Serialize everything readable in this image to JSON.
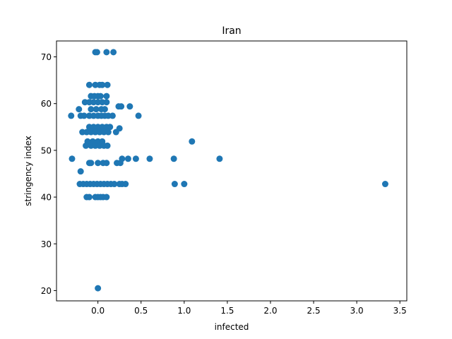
{
  "chart_data": {
    "type": "scatter",
    "title": "Iran",
    "xlabel": "infected",
    "ylabel": "stringency index",
    "xlim": [
      -0.48,
      3.58
    ],
    "ylim": [
      17.8,
      73.4
    ],
    "xticks": [
      0.0,
      0.5,
      1.0,
      1.5,
      2.0,
      2.5,
      3.0,
      3.5
    ],
    "xtick_labels": [
      "0.0",
      "0.5",
      "1.0",
      "1.5",
      "2.0",
      "2.5",
      "3.0",
      "3.5"
    ],
    "yticks": [
      20,
      30,
      40,
      50,
      60,
      70
    ],
    "ytick_labels": [
      "20",
      "30",
      "40",
      "50",
      "60",
      "70"
    ],
    "grid": false,
    "legend": "none",
    "color": "#1f77b4",
    "points": [
      [
        -0.03,
        71.0
      ],
      [
        -0.01,
        71.0
      ],
      [
        0.1,
        71.0
      ],
      [
        0.18,
        71.0
      ],
      [
        -0.1,
        64.0
      ],
      [
        -0.03,
        64.0
      ],
      [
        0.02,
        64.0
      ],
      [
        0.05,
        64.0
      ],
      [
        0.11,
        64.0
      ],
      [
        -0.08,
        61.6
      ],
      [
        -0.04,
        61.6
      ],
      [
        0.0,
        61.6
      ],
      [
        0.03,
        61.6
      ],
      [
        0.1,
        61.6
      ],
      [
        -0.15,
        60.3
      ],
      [
        -0.1,
        60.3
      ],
      [
        -0.05,
        60.3
      ],
      [
        0.0,
        60.3
      ],
      [
        0.05,
        60.3
      ],
      [
        0.1,
        60.3
      ],
      [
        0.24,
        59.4
      ],
      [
        0.27,
        59.4
      ],
      [
        0.37,
        59.4
      ],
      [
        -0.22,
        58.8
      ],
      [
        -0.08,
        58.8
      ],
      [
        -0.02,
        58.8
      ],
      [
        0.04,
        58.8
      ],
      [
        0.08,
        58.8
      ],
      [
        -0.31,
        57.4
      ],
      [
        -0.2,
        57.4
      ],
      [
        -0.16,
        57.4
      ],
      [
        -0.1,
        57.4
      ],
      [
        -0.05,
        57.4
      ],
      [
        0.0,
        57.4
      ],
      [
        0.04,
        57.4
      ],
      [
        0.08,
        57.4
      ],
      [
        0.12,
        57.4
      ],
      [
        0.17,
        57.4
      ],
      [
        0.47,
        57.4
      ],
      [
        -0.1,
        55.0
      ],
      [
        -0.05,
        55.0
      ],
      [
        0.0,
        55.0
      ],
      [
        0.05,
        55.0
      ],
      [
        0.1,
        55.0
      ],
      [
        0.14,
        55.0
      ],
      [
        0.25,
        54.7
      ],
      [
        -0.18,
        53.9
      ],
      [
        -0.13,
        53.9
      ],
      [
        -0.08,
        53.9
      ],
      [
        -0.03,
        53.9
      ],
      [
        0.02,
        53.9
      ],
      [
        0.07,
        53.9
      ],
      [
        0.12,
        53.9
      ],
      [
        0.21,
        53.9
      ],
      [
        -0.12,
        51.9
      ],
      [
        -0.06,
        51.9
      ],
      [
        0.0,
        51.9
      ],
      [
        0.05,
        51.9
      ],
      [
        1.09,
        51.9
      ],
      [
        -0.14,
        51.0
      ],
      [
        -0.08,
        51.0
      ],
      [
        -0.03,
        51.0
      ],
      [
        0.02,
        51.0
      ],
      [
        0.07,
        51.0
      ],
      [
        0.11,
        51.0
      ],
      [
        -0.3,
        48.2
      ],
      [
        0.28,
        48.2
      ],
      [
        0.35,
        48.2
      ],
      [
        0.44,
        48.2
      ],
      [
        0.6,
        48.2
      ],
      [
        0.88,
        48.2
      ],
      [
        1.41,
        48.2
      ],
      [
        -0.1,
        47.3
      ],
      [
        -0.08,
        47.3
      ],
      [
        0.0,
        47.3
      ],
      [
        0.06,
        47.3
      ],
      [
        0.1,
        47.3
      ],
      [
        0.22,
        47.3
      ],
      [
        0.26,
        47.3
      ],
      [
        -0.2,
        45.5
      ],
      [
        -0.21,
        42.8
      ],
      [
        -0.17,
        42.8
      ],
      [
        -0.13,
        42.8
      ],
      [
        -0.09,
        42.8
      ],
      [
        -0.05,
        42.8
      ],
      [
        -0.01,
        42.8
      ],
      [
        0.03,
        42.8
      ],
      [
        0.07,
        42.8
      ],
      [
        0.11,
        42.8
      ],
      [
        0.15,
        42.8
      ],
      [
        0.19,
        42.8
      ],
      [
        0.25,
        42.8
      ],
      [
        0.28,
        42.8
      ],
      [
        0.32,
        42.8
      ],
      [
        0.89,
        42.8
      ],
      [
        1.0,
        42.8
      ],
      [
        3.33,
        42.8
      ],
      [
        -0.13,
        40.0
      ],
      [
        -0.1,
        40.0
      ],
      [
        -0.03,
        40.0
      ],
      [
        0.0,
        40.0
      ],
      [
        0.03,
        40.0
      ],
      [
        0.06,
        40.0
      ],
      [
        0.1,
        40.0
      ],
      [
        0.0,
        20.5
      ]
    ]
  }
}
